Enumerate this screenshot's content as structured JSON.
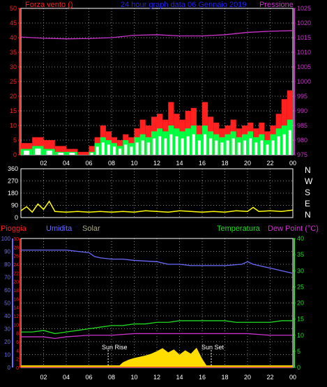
{
  "colors": {
    "wind": "#ff2020",
    "gust": "#ffffff",
    "windfill": "#00ff40",
    "pressure": "#cc33cc",
    "direction": "#ffff00",
    "humidity": "#6a6aff",
    "temperature": "#22dd22",
    "dewpoint": "#cc33cc",
    "rain": "#ff2020",
    "solar": "#ffdd00",
    "solar_label": "#aaaa88",
    "axis": "#ffffff",
    "grid": "#888888"
  },
  "top": {
    "title": "24 hour graph data",
    "date": "06 Gennaio 2019",
    "left_label": "Forza vento",
    "left_unit": "()",
    "right_label": "Pressione"
  },
  "middle": {
    "compass": [
      "N",
      "W",
      "S",
      "E",
      "N"
    ]
  },
  "bottom": {
    "rain_label": "Pioggia",
    "humidity_label": "Umidita",
    "solar_label": "Solar",
    "temperature_label": "Temperatura",
    "dewpoint_label": "Dew Point (°C)",
    "sunrise_label": "Sun Rise",
    "sunset_label": "Sun Set"
  },
  "chart_data": [
    {
      "type": "area",
      "name": "wind-pressure",
      "x_tick_labels": [
        "02",
        "04",
        "06",
        "08",
        "10",
        "12",
        "14",
        "16",
        "18",
        "20",
        "22",
        "00"
      ],
      "y_left": {
        "ticks": [
          0,
          5,
          10,
          15,
          20,
          25,
          30,
          35,
          40,
          45,
          50
        ],
        "range": [
          0,
          50
        ]
      },
      "y_right": {
        "ticks": [
          975,
          980,
          985,
          990,
          995,
          1000,
          1005,
          1010,
          1015,
          1020,
          1025
        ],
        "range": [
          975,
          1025
        ]
      },
      "hour_range": [
        0,
        24
      ],
      "pressure": {
        "x": [
          0,
          2,
          4,
          6,
          8,
          10,
          12,
          14,
          16,
          18,
          20,
          22,
          24
        ],
        "y": [
          1015.2,
          1014.8,
          1014.6,
          1014.7,
          1015.0,
          1015.8,
          1016.0,
          1015.6,
          1015.6,
          1016.0,
          1016.8,
          1017.2,
          1017.4
        ]
      },
      "wind_max": {
        "x": [
          0,
          1,
          2,
          3,
          4,
          5,
          6,
          6.5,
          7,
          7.5,
          8,
          8.5,
          9,
          9.5,
          10,
          10.5,
          11,
          11.5,
          12,
          12.5,
          13,
          13.5,
          14,
          14.5,
          15,
          15.5,
          16,
          16.5,
          17,
          17.5,
          18,
          18.5,
          19,
          19.5,
          20,
          20.5,
          21,
          21.5,
          22,
          22.5,
          23,
          23.5,
          24
        ],
        "y": [
          4,
          6,
          5,
          3,
          2,
          1,
          3,
          6,
          10,
          8,
          6,
          5,
          7,
          6,
          9,
          12,
          10,
          13,
          14,
          12,
          18,
          14,
          12,
          15,
          16,
          10,
          18,
          13,
          11,
          9,
          10,
          12,
          9,
          10,
          11,
          9,
          11,
          8,
          10,
          14,
          19,
          22,
          20
        ]
      },
      "gust_max": {
        "x": [
          0,
          1,
          2,
          3,
          4,
          5,
          6,
          6.5,
          7,
          7.5,
          8,
          8.5,
          9,
          9.5,
          10,
          10.5,
          11,
          11.5,
          12,
          12.5,
          13,
          13.5,
          14,
          14.5,
          15,
          15.5,
          16,
          16.5,
          17,
          17.5,
          18,
          18.5,
          19,
          19.5,
          20,
          20.5,
          21,
          21.5,
          22,
          22.5,
          23,
          23.5,
          24
        ],
        "y": [
          2,
          3,
          2,
          1,
          1,
          0,
          1,
          4,
          6,
          5,
          4,
          3,
          5,
          4,
          6,
          7,
          6,
          8,
          9,
          8,
          10,
          9,
          8,
          9,
          10,
          7,
          10,
          8,
          7,
          6,
          7,
          8,
          6,
          7,
          8,
          6,
          7,
          5,
          7,
          9,
          10,
          12,
          11
        ]
      }
    },
    {
      "type": "line",
      "name": "wind-direction",
      "y_ticks": [
        0,
        90,
        180,
        270,
        360
      ],
      "y_range": [
        0,
        360
      ],
      "direction": {
        "x": [
          0,
          0.5,
          1,
          1.5,
          2,
          2.5,
          3,
          4,
          5,
          6,
          7,
          8,
          9,
          10,
          11,
          12,
          13,
          14,
          15,
          16,
          17,
          18,
          19,
          20,
          20.5,
          21,
          22,
          23,
          24
        ],
        "y": [
          50,
          80,
          40,
          100,
          60,
          120,
          45,
          40,
          45,
          40,
          45,
          40,
          45,
          40,
          50,
          45,
          40,
          50,
          45,
          40,
          45,
          40,
          50,
          45,
          75,
          45,
          50,
          45,
          55
        ]
      }
    },
    {
      "type": "line",
      "name": "rain-humidity-temperature",
      "y_hum": {
        "ticks": [
          0,
          10,
          20,
          30,
          40,
          50,
          60,
          70,
          80,
          90,
          100
        ],
        "range": [
          0,
          100
        ]
      },
      "y_rain": {
        "ticks": [
          0,
          2,
          4,
          6,
          8,
          10,
          12,
          14,
          16,
          18,
          20,
          22,
          24,
          26,
          28,
          30
        ],
        "range": [
          0,
          30
        ]
      },
      "y_temp": {
        "ticks": [
          0,
          5,
          10,
          15,
          20,
          25,
          30,
          35,
          40
        ],
        "range": [
          0,
          40
        ]
      },
      "sunrise_hour": 7.7,
      "sunset_hour": 16.8,
      "humidity": {
        "x": [
          0,
          2,
          4,
          5,
          6,
          6.5,
          7,
          8,
          9,
          10,
          12,
          13,
          14,
          15,
          16,
          18,
          19.5,
          20,
          20.5,
          21,
          22,
          23,
          24
        ],
        "y": [
          91,
          91,
          91,
          90,
          89,
          86,
          85,
          84,
          84,
          83,
          82,
          80,
          80,
          79,
          79,
          79,
          80,
          82,
          80,
          79,
          77,
          75,
          73
        ]
      },
      "temperature": {
        "x": [
          0,
          1,
          2,
          3,
          4,
          5,
          6,
          7,
          8,
          9,
          10,
          11,
          12,
          13,
          14,
          15,
          16,
          17,
          18,
          19,
          20,
          21,
          22,
          23,
          24
        ],
        "y": [
          11,
          11,
          11.5,
          10.5,
          11,
          11.5,
          12,
          12.5,
          13,
          13,
          13.5,
          13.5,
          14,
          14,
          14.5,
          14.5,
          14.5,
          14.5,
          14.5,
          14,
          14,
          14,
          14,
          14.5,
          14.5
        ]
      },
      "dewpoint": {
        "x": [
          0,
          2,
          3,
          4,
          6,
          8,
          10,
          12,
          14,
          16,
          18,
          20,
          22,
          24
        ],
        "y": [
          9.5,
          9.5,
          9,
          9.5,
          10,
          10,
          10.5,
          10.5,
          10.5,
          10.5,
          10.5,
          10.5,
          10,
          10
        ]
      },
      "solar": {
        "x": [
          8.5,
          9,
          9.5,
          10,
          10.5,
          11,
          11.5,
          12,
          12.5,
          13,
          13.5,
          14,
          14.5,
          15,
          15.5,
          16,
          16.5
        ],
        "y": [
          0,
          1.2,
          1.8,
          2.2,
          2.5,
          2.8,
          3.2,
          3.8,
          4.5,
          3.5,
          4.2,
          3.0,
          4.0,
          3.2,
          4.6,
          2.0,
          0
        ]
      },
      "rain": {
        "x": [
          0,
          24
        ],
        "y": [
          0,
          0
        ]
      }
    }
  ]
}
